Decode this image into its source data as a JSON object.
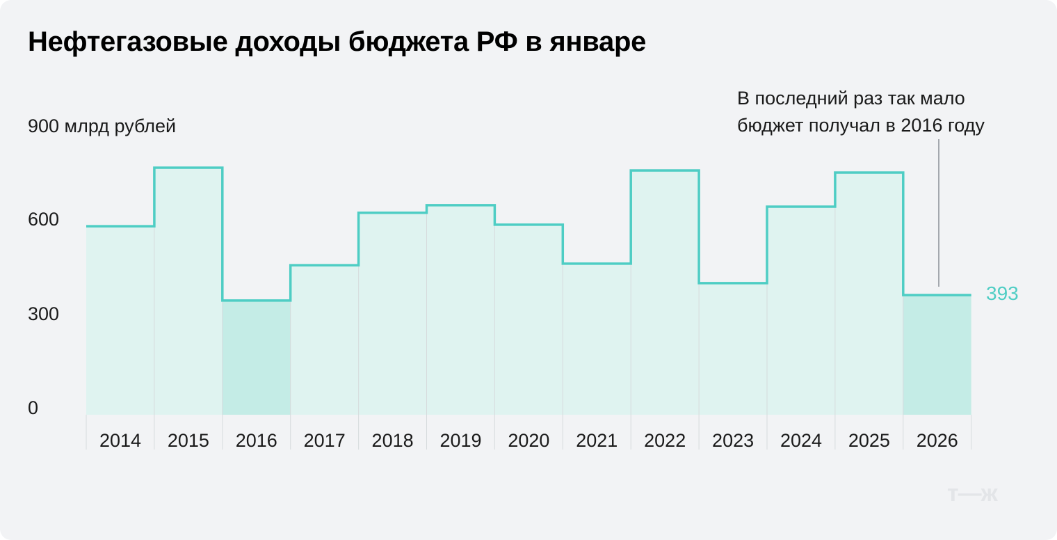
{
  "title": "Нефтегазовые доходы бюджета РФ в январе",
  "unit_label": "900 млрд рублей",
  "y_ticks": [
    {
      "label": "600",
      "value": 600
    },
    {
      "label": "300",
      "value": 300
    },
    {
      "label": "0",
      "value": 0
    }
  ],
  "annotation": {
    "text": "В последний раз так мало бюджет получал в 2016 году",
    "value_label": "393"
  },
  "logo": "т—ж",
  "colors": {
    "accent": "#4ecdc4",
    "bar_fill": "#dff3f0",
    "bar_fill_highlight": "#c4ece6",
    "background": "#f2f3f5"
  },
  "chart_data": {
    "type": "bar",
    "title": "Нефтегазовые доходы бюджета РФ в январе",
    "xlabel": "",
    "ylabel": "млрд рублей",
    "ylim": [
      0,
      900
    ],
    "categories": [
      "2014",
      "2015",
      "2016",
      "2017",
      "2018",
      "2019",
      "2020",
      "2021",
      "2022",
      "2023",
      "2024",
      "2025",
      "2026"
    ],
    "values": [
      619,
      811,
      375,
      491,
      663,
      688,
      624,
      496,
      802,
      432,
      683,
      795,
      393
    ],
    "highlighted": [
      "2016",
      "2026"
    ],
    "y_ticks": [
      0,
      300,
      600,
      900
    ],
    "annotations": [
      {
        "x": "2026",
        "text": "393"
      },
      {
        "x": "2026",
        "text": "В последний раз так мало бюджет получал в 2016 году"
      }
    ],
    "grid": false,
    "legend": null
  }
}
